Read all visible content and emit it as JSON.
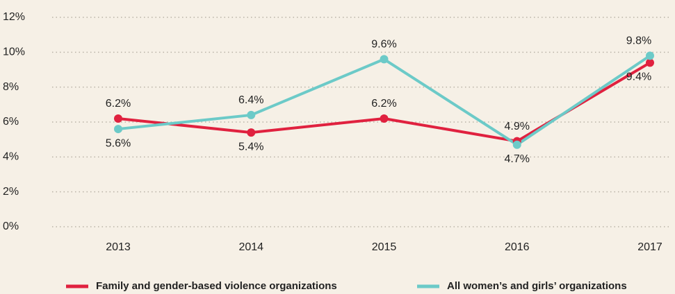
{
  "chart_data": {
    "type": "line",
    "x": [
      "2013",
      "2014",
      "2015",
      "2016",
      "2017"
    ],
    "series": [
      {
        "name": "Family and gender-based violence organizations",
        "color": "#e0213f",
        "values": [
          6.2,
          5.4,
          6.2,
          4.9,
          9.4
        ],
        "value_labels": [
          "6.2%",
          "5.4%",
          "6.2%",
          "4.9%",
          "9.4%"
        ]
      },
      {
        "name": "All women’s and girls’ organizations",
        "color": "#6ccac8",
        "values": [
          5.6,
          6.4,
          9.6,
          4.7,
          9.8
        ],
        "value_labels": [
          "5.6%",
          "6.4%",
          "9.6%",
          "4.7%",
          "9.8%"
        ]
      }
    ],
    "ylim": [
      0,
      12
    ],
    "yticks": [
      {
        "value": 0,
        "label": "0%"
      },
      {
        "value": 2,
        "label": "2%"
      },
      {
        "value": 4,
        "label": "4%"
      },
      {
        "value": 6,
        "label": "6%"
      },
      {
        "value": 8,
        "label": "8%"
      },
      {
        "value": 10,
        "label": "10%"
      },
      {
        "value": 12,
        "label": "12%"
      }
    ],
    "grid": true,
    "legend": "bottom"
  }
}
